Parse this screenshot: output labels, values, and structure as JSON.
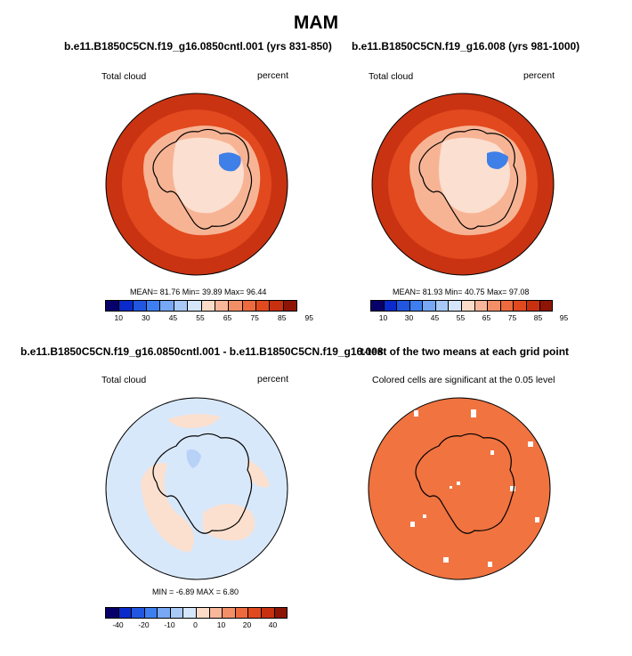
{
  "main_title": "MAM",
  "panels": [
    {
      "title": "b.e11.B1850C5CN.f19_g16.0850cntl.001 (yrs 831-850)",
      "left_label": "Total cloud",
      "right_label": "percent",
      "stats": "MEAN= 81.76 Min= 39.89 Max= 96.44"
    },
    {
      "title": "b.e11.B1850C5CN.f19_g16.008 (yrs 981-1000)",
      "left_label": "Total cloud",
      "right_label": "percent",
      "stats": "MEAN= 81.93 Min= 40.75 Max= 97.08"
    },
    {
      "title": "b.e11.B1850C5CN.f19_g16.0850cntl.001 - b.e11.B1850C5CN.f19_g16.008",
      "left_label": "Total cloud",
      "right_label": "percent",
      "stats": "MIN = -6.89 MAX = 6.80"
    },
    {
      "title": "t-test of the two means at each grid point",
      "subtitle": "Colored cells are significant at the 0.05 level"
    }
  ],
  "colorbars": {
    "abs": {
      "colors": [
        "#08006a",
        "#0a2acb",
        "#2156e0",
        "#3d7ff0",
        "#76a8f5",
        "#a9c9f7",
        "#d5e6fa",
        "#fcdcc8",
        "#f8b79a",
        "#f38f67",
        "#ed6a3f",
        "#e14a1f",
        "#c83010",
        "#8e1505"
      ],
      "ticks": [
        "10",
        "30",
        "45",
        "55",
        "65",
        "75",
        "85",
        "95"
      ]
    },
    "diff": {
      "colors": [
        "#08006a",
        "#0a2acb",
        "#2156e0",
        "#3d7ff0",
        "#76a8f5",
        "#a9c9f7",
        "#d5e6fa",
        "#fcdcc8",
        "#f8b79a",
        "#f38f67",
        "#ed6a3f",
        "#e14a1f",
        "#c83010",
        "#8e1505"
      ],
      "ticks": [
        "-40",
        "-20",
        "-10",
        "0",
        "10",
        "20",
        "40"
      ]
    }
  },
  "map_colors": {
    "ocean_high": "#c93312",
    "ocean_mid": "#e2491e",
    "land_light": "#f7b495",
    "land_pale": "#fbdfd0",
    "blue_patch": "#3f7fe8",
    "diff_base": "#d8e8fb",
    "diff_peach": "#fbe0cf",
    "sig_fill": "#f07340",
    "coast": "#000000"
  }
}
